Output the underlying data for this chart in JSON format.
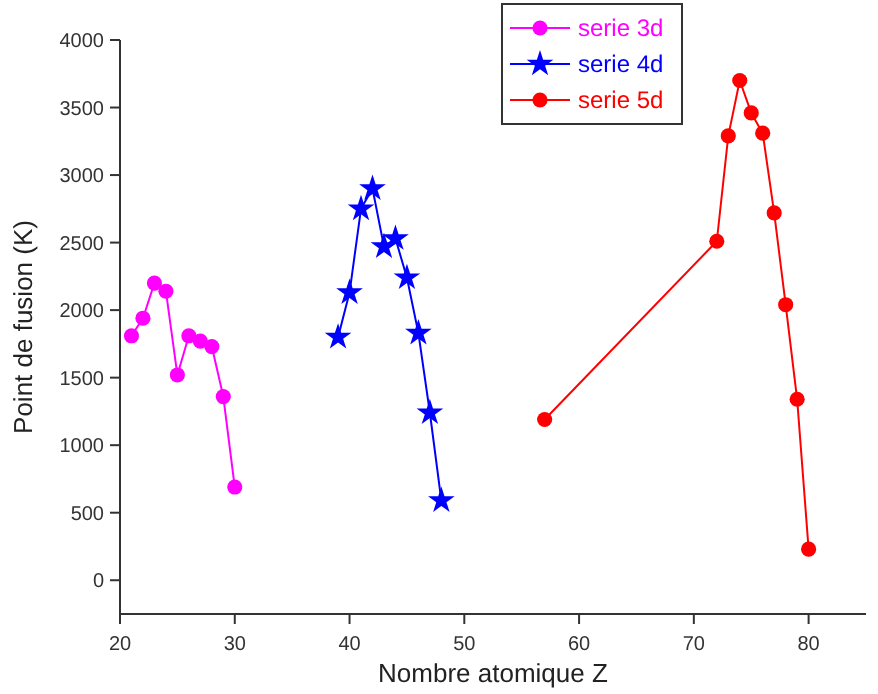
{
  "chart_data": {
    "type": "line",
    "xlabel": "Nombre atomique Z",
    "ylabel": "Point de fusion (K)",
    "xlim": [
      20,
      85
    ],
    "ylim": [
      -250,
      4000
    ],
    "xticks": [
      20,
      30,
      40,
      50,
      60,
      70,
      80
    ],
    "yticks": [
      0,
      500,
      1000,
      1500,
      2000,
      2500,
      3000,
      3500,
      4000
    ],
    "grid": false,
    "legend": "top right",
    "series": [
      {
        "name": "serie 3d",
        "color": "#ff00ff",
        "marker": "circle",
        "x": [
          21,
          22,
          23,
          24,
          25,
          26,
          27,
          28,
          29,
          30
        ],
        "values": [
          1810,
          1940,
          2200,
          2140,
          1520,
          1810,
          1770,
          1730,
          1360,
          690
        ]
      },
      {
        "name": "serie 4d",
        "color": "#0000ff",
        "marker": "star",
        "x": [
          39,
          40,
          41,
          42,
          43,
          44,
          45,
          46,
          47,
          48
        ],
        "values": [
          1800,
          2130,
          2750,
          2900,
          2470,
          2530,
          2240,
          1830,
          1240,
          590
        ]
      },
      {
        "name": "serie 5d",
        "color": "#ff0000",
        "marker": "circle",
        "x": [
          57,
          72,
          73,
          74,
          75,
          76,
          77,
          78,
          79,
          80
        ],
        "values": [
          1190,
          2510,
          3290,
          3700,
          3460,
          3310,
          2720,
          2040,
          1340,
          230
        ]
      }
    ]
  }
}
